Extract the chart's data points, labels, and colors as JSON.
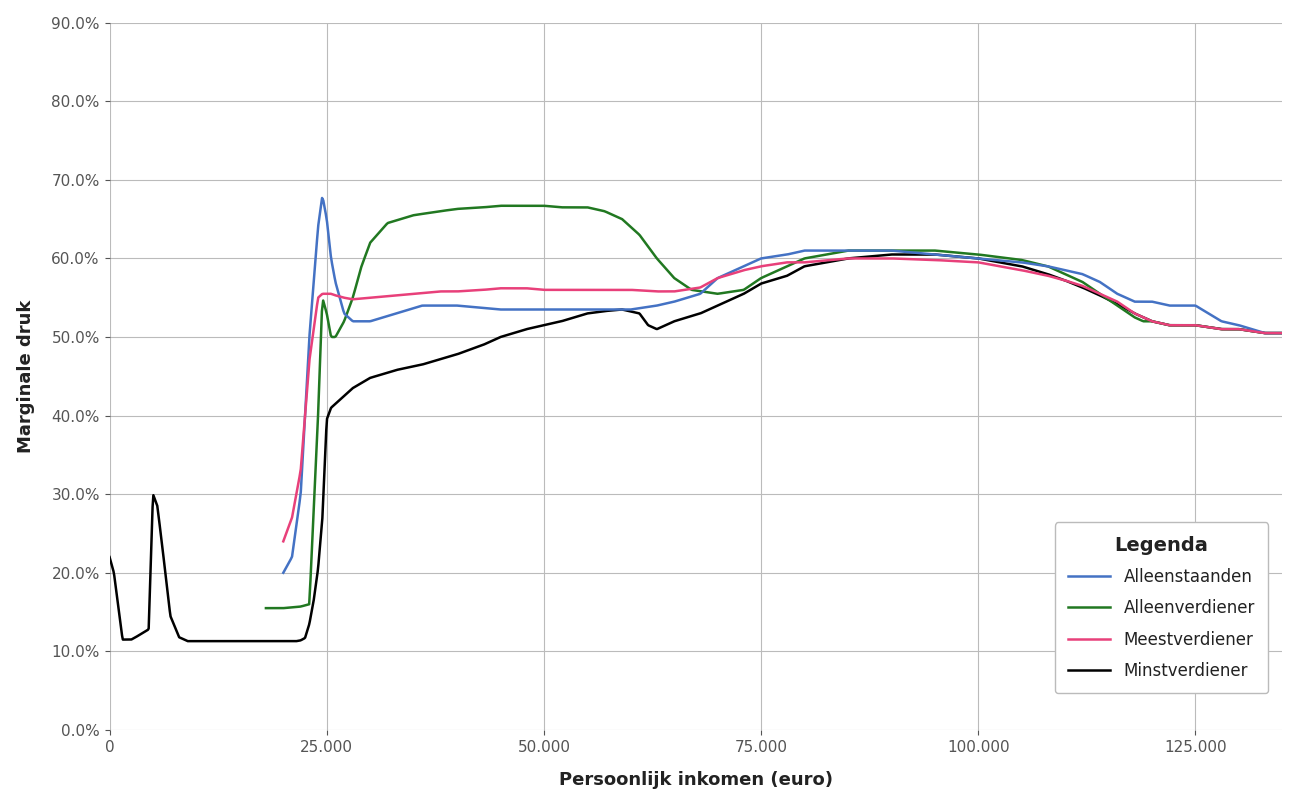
{
  "xlabel": "Persoonlijk inkomen (euro)",
  "ylabel": "Marginale druk",
  "legend_title": "Legenda",
  "colors": {
    "Alleenstaanden": "#4472C4",
    "Alleenverdiener": "#217821",
    "Meestverdiener": "#E8407A",
    "Minstverdiener": "#000000"
  },
  "xlim": [
    0,
    135000
  ],
  "ylim": [
    0.0,
    0.9
  ],
  "xticks": [
    0,
    25000,
    50000,
    75000,
    100000,
    125000
  ],
  "yticks": [
    0.0,
    0.1,
    0.2,
    0.3,
    0.4,
    0.5,
    0.6,
    0.7,
    0.8,
    0.9
  ],
  "background_color": "#FFFFFF",
  "plot_bg_color": "#F5F5F5",
  "grid_color": "#BBBBBB"
}
